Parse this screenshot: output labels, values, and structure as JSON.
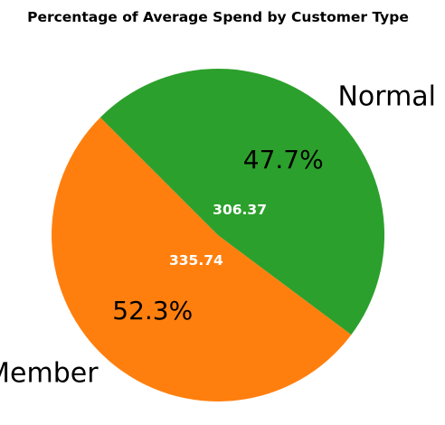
{
  "chart_data": {
    "type": "pie",
    "title": "Percentage of Average Spend by Customer Type",
    "start_angle_deg": 135,
    "counterclock": true,
    "slices": [
      {
        "label": "Member",
        "value": 335.74,
        "value_label": "335.74",
        "percent": 52.3,
        "percent_label": "52.3%",
        "color": "#ff7f0e"
      },
      {
        "label": "Normal",
        "value": 306.37,
        "value_label": "306.37",
        "percent": 47.7,
        "percent_label": "47.7%",
        "color": "#2ca02c"
      }
    ]
  }
}
